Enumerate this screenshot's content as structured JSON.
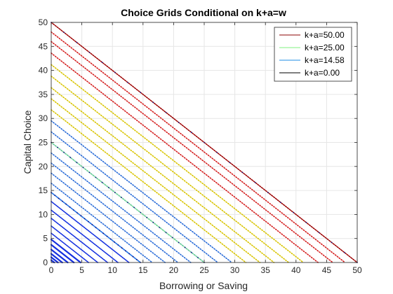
{
  "chart_data": {
    "type": "line",
    "title": "Choice Grids Conditional on k+a=w",
    "xlabel": "Borrowing or Saving",
    "ylabel": "Capital Choice",
    "xlim": [
      0,
      50
    ],
    "ylim": [
      0,
      50
    ],
    "x_ticks": [
      0,
      5,
      10,
      15,
      20,
      25,
      30,
      35,
      40,
      45,
      50
    ],
    "y_ticks": [
      0,
      5,
      10,
      15,
      20,
      25,
      30,
      35,
      40,
      45,
      50
    ],
    "grid": true,
    "legend_position": "top-right",
    "description": "Family of downward-sloping choice grids along k + a = w, drawn as dotted lines for wealth levels w from 0 to 50; dense colored dots (blue at low w, yellow/red at high w) mark grid points",
    "series": [
      {
        "name": "k+a=50.00",
        "w": 50.0,
        "color": "#8b0000",
        "points": [
          [
            0,
            50
          ],
          [
            50,
            0
          ]
        ]
      },
      {
        "name": "k+a=25.00",
        "w": 25.0,
        "color": "#7ff07f",
        "points": [
          [
            0,
            25
          ],
          [
            25,
            0
          ]
        ]
      },
      {
        "name": "k+a=14.58",
        "w": 14.58,
        "color": "#1e8ce6",
        "points": [
          [
            0,
            14.58
          ],
          [
            14.58,
            0
          ]
        ]
      },
      {
        "name": "k+a=0.00",
        "w": 0.0,
        "color": "#000000",
        "points": [
          [
            0,
            0
          ],
          [
            0,
            0
          ]
        ]
      }
    ],
    "background_w_levels": [
      0.5,
      1.1,
      1.8,
      2.7,
      3.7,
      4.8,
      6.1,
      7.6,
      9.2,
      10.9,
      12.7,
      14.58,
      16.5,
      18.6,
      20.7,
      22.8,
      25.0,
      27.2,
      29.5,
      31.8,
      34.1,
      36.4,
      38.8,
      41.2,
      43.6,
      46.0,
      48.0,
      50.0
    ]
  }
}
